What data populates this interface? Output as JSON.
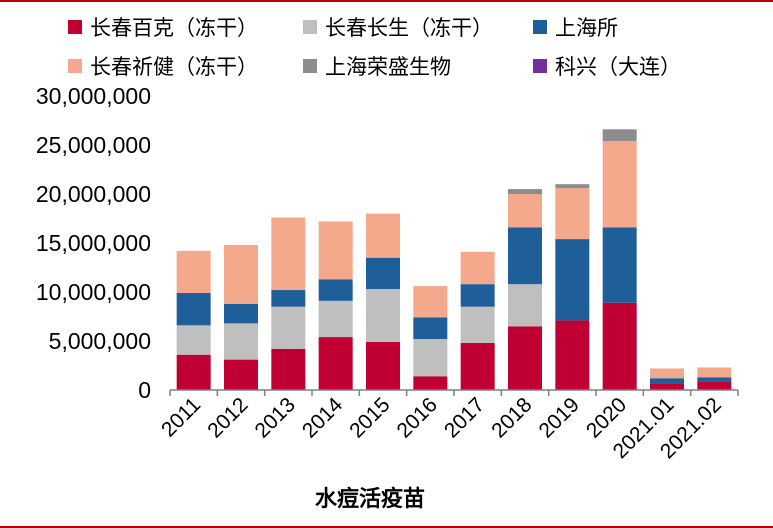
{
  "colors": {
    "frame": "#c00000",
    "axis": "#808080"
  },
  "chart_data": {
    "type": "bar",
    "stacked": true,
    "xlabel": "水痘活疫苗",
    "ylabel": "",
    "ylim": [
      0,
      30000000
    ],
    "yticks": [
      0,
      5000000,
      10000000,
      15000000,
      20000000,
      25000000,
      30000000
    ],
    "ytick_labels": [
      "0",
      "5,000,000",
      "10,000,000",
      "15,000,000",
      "20,000,000",
      "25,000,000",
      "30,000,000"
    ],
    "categories": [
      "2011",
      "2012",
      "2013",
      "2014",
      "2015",
      "2016",
      "2017",
      "2018",
      "2019",
      "2020",
      "2021.01",
      "2021.02"
    ],
    "legend_position": "top",
    "series": [
      {
        "name": "长春百克（冻干）",
        "color": "#c00033",
        "values": [
          3600000,
          3100000,
          4200000,
          5400000,
          4900000,
          1400000,
          4800000,
          6500000,
          7100000,
          8900000,
          700000,
          900000
        ]
      },
      {
        "name": "长春长生（冻干）",
        "color": "#bfbfbf",
        "values": [
          3000000,
          3700000,
          4300000,
          3700000,
          5400000,
          3800000,
          3700000,
          4300000,
          0,
          0,
          0,
          0
        ]
      },
      {
        "name": "上海所",
        "color": "#1f5f99",
        "values": [
          3300000,
          2000000,
          1700000,
          2200000,
          3200000,
          2200000,
          2300000,
          5800000,
          8300000,
          7700000,
          500000,
          400000
        ]
      },
      {
        "name": "长春祈健（冻干）",
        "color": "#f4a88c",
        "values": [
          4300000,
          6000000,
          7400000,
          5900000,
          4500000,
          3200000,
          3300000,
          3400000,
          5200000,
          8800000,
          1000000,
          1000000
        ]
      },
      {
        "name": "上海荣盛生物",
        "color": "#8c8c8c",
        "values": [
          0,
          0,
          0,
          0,
          0,
          0,
          0,
          500000,
          400000,
          1200000,
          0,
          0
        ]
      },
      {
        "name": "科兴（大连）",
        "color": "#7030a0",
        "values": [
          0,
          0,
          0,
          0,
          0,
          0,
          0,
          0,
          0,
          0,
          0,
          0
        ]
      }
    ]
  }
}
